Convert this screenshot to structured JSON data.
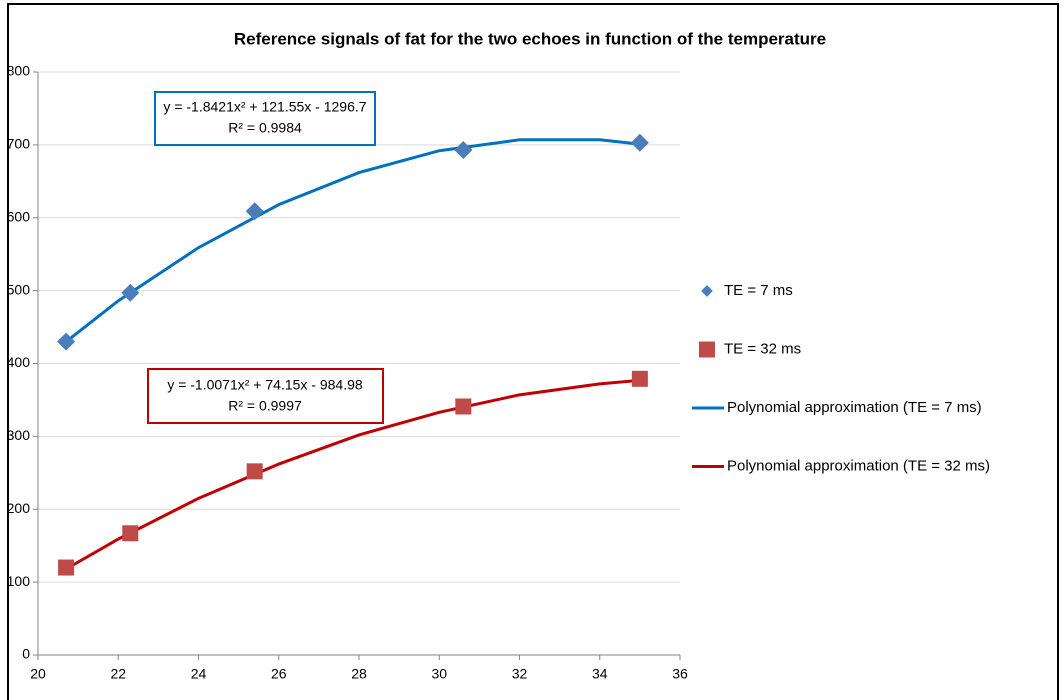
{
  "chart_data": {
    "type": "scatter",
    "title": "Reference signals of fat for the two echoes in function of the temperature",
    "xlim": [
      20,
      36
    ],
    "xticks": [
      20,
      22,
      24,
      26,
      28,
      30,
      32,
      34,
      36
    ],
    "ylim": [
      0,
      800
    ],
    "yticks": [
      0,
      100,
      200,
      300,
      400,
      500,
      600,
      700,
      800
    ],
    "grid": true,
    "legend": "right",
    "series": [
      {
        "name": "TE = 7 ms",
        "color": "#4a7ebb",
        "marker": "diamond",
        "x": [
          20.7,
          22.3,
          25.4,
          30.6,
          35
        ],
        "values": [
          430,
          497,
          609,
          693,
          703
        ]
      },
      {
        "name": "TE = 32 ms",
        "color": "#be4b48",
        "marker": "square",
        "x": [
          20.7,
          22.3,
          25.4,
          30.6,
          35
        ],
        "values": [
          120,
          167,
          252,
          341,
          379
        ]
      },
      {
        "name": "Polynomial approximation (TE = 7 ms)",
        "color": "#0070c0",
        "marker": "line",
        "x": [
          20.7,
          22,
          24,
          26,
          28,
          30,
          32,
          34,
          35
        ],
        "values": [
          430,
          486,
          559,
          618,
          662,
          692,
          707,
          707,
          701
        ]
      },
      {
        "name": "Polynomial approximation (TE = 32 ms)",
        "color": "#c00000",
        "marker": "line",
        "x": [
          20.7,
          22,
          24,
          26,
          28,
          30,
          32,
          34,
          35
        ],
        "values": [
          118,
          159,
          215,
          262,
          302,
          333,
          357,
          372,
          377
        ]
      }
    ],
    "annotations": [
      {
        "equation": "y = -1.8421x² + 121.55x - 1296.7",
        "r_squared": "R² = 0.9984"
      },
      {
        "equation": "y = -1.0071x² + 74.15x - 984.98",
        "r_squared": "R² = 0.9997"
      }
    ]
  }
}
